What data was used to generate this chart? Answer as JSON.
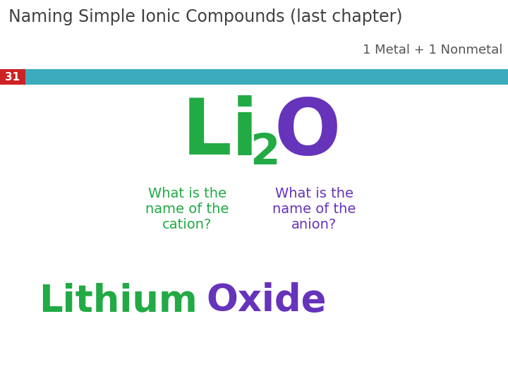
{
  "title": "Naming Simple Ionic Compounds (last chapter)",
  "subtitle": "1 Metal + 1 Nonmetal",
  "slide_number": "31",
  "formula_Li": "Li",
  "formula_2": "2",
  "formula_O": "O",
  "cation_question": "What is the\nname of the\ncation?",
  "anion_question": "What is the\nname of the\nanion?",
  "answer_lithium": "Lithium",
  "answer_oxide": "Oxide",
  "bg_color": "#ffffff",
  "title_color": "#404040",
  "bar_color": "#3aacbc",
  "slide_num_bg": "#cc2222",
  "slide_num_color": "#ffffff",
  "green_color": "#22aa44",
  "purple_color": "#6633bb",
  "subtitle_color": "#555555",
  "title_fontsize": 17,
  "subtitle_fontsize": 13,
  "formula_fontsize": 80,
  "subscript_fontsize": 44,
  "question_fontsize": 14,
  "answer_fontsize": 38,
  "slide_num_fontsize": 11
}
